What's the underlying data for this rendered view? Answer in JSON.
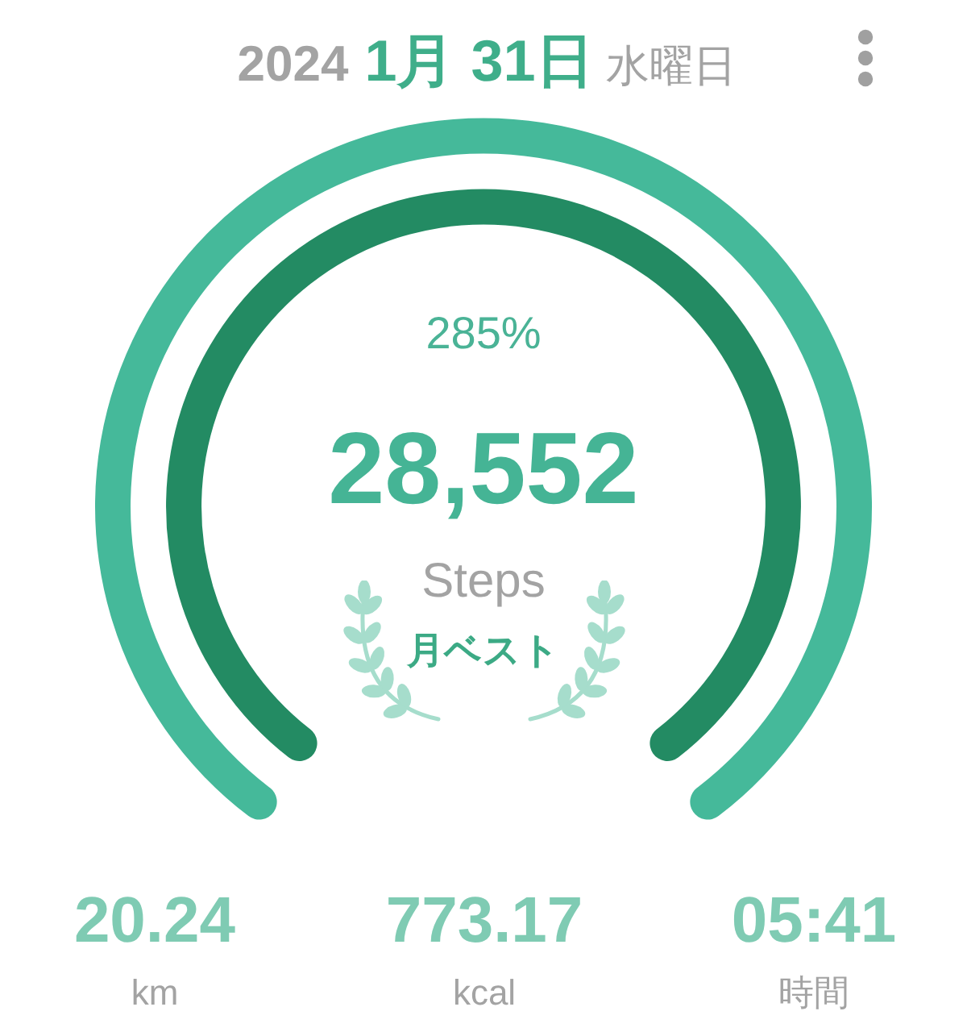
{
  "chart_data": [
    {
      "type": "donut",
      "title": "2024 1月 31日 水曜日",
      "categories": [
        null
      ],
      "series": [
        {
          "color": "#45b99a",
          "values": [
            100
          ]
        },
        {
          "color": "#238b63",
          "values": [
            100
          ]
        }
      ]
    },
    {
      "type": "other",
      "annotations": [
        "285%",
        "28,552",
        "Steps",
        "月ベスト",
        "20.24",
        "773.17",
        "05:41",
        "km",
        "kcal",
        "時間"
      ]
    }
  ]
}
